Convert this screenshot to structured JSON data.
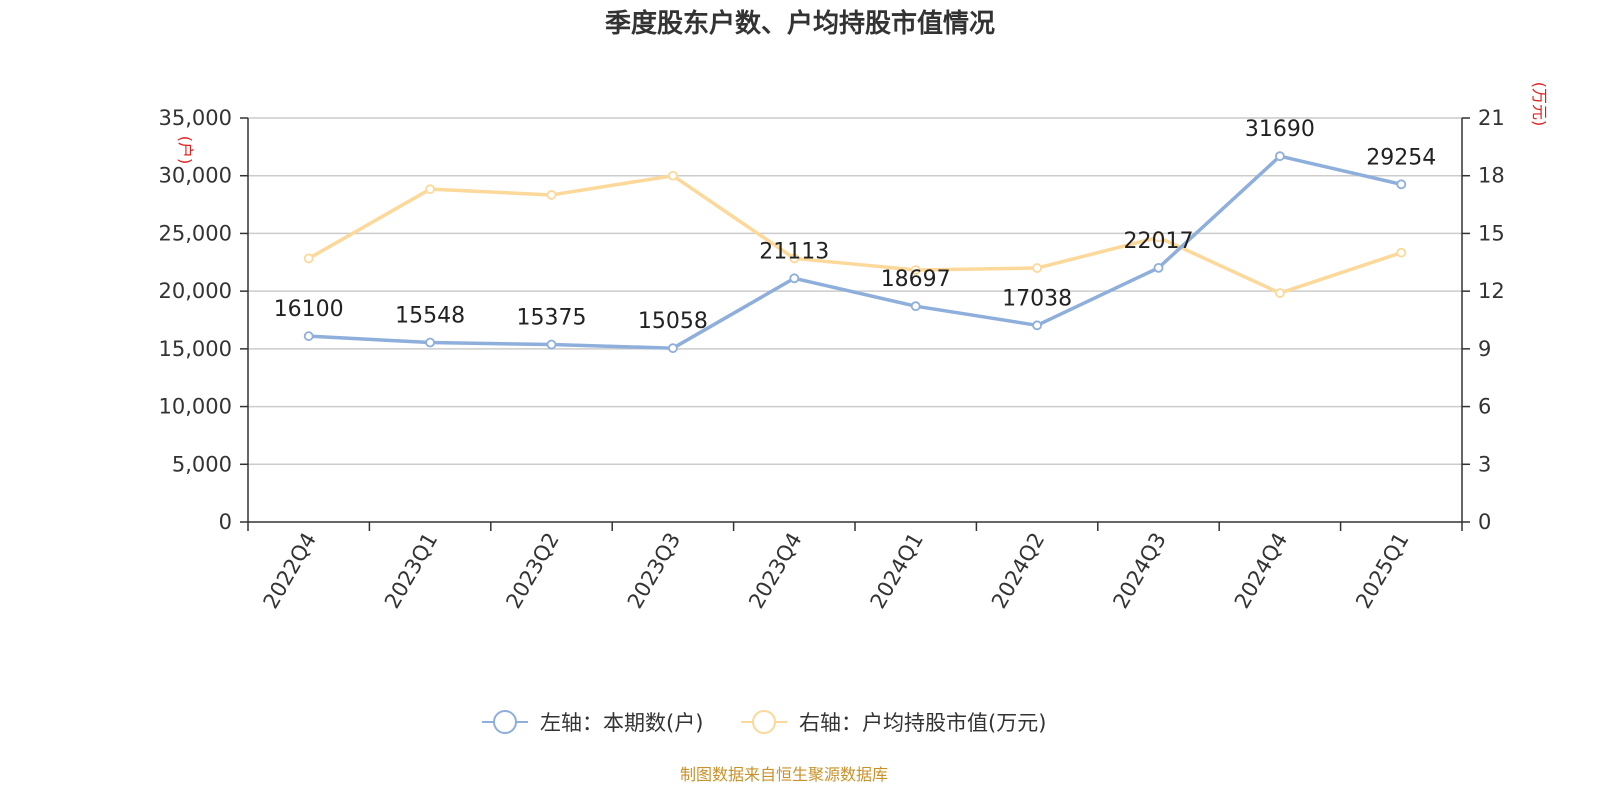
{
  "chart_data": {
    "type": "line",
    "title": "季度股东户数、户均持股市值情况",
    "categories": [
      "2022Q4",
      "2023Q1",
      "2023Q2",
      "2023Q3",
      "2023Q4",
      "2024Q1",
      "2024Q2",
      "2024Q3",
      "2024Q4",
      "2025Q1"
    ],
    "left_axis": {
      "unit": "(户)",
      "ylim": [
        0,
        35000
      ],
      "ticks": [
        "0",
        "5,000",
        "10,000",
        "15,000",
        "20,000",
        "25,000",
        "30,000",
        "35,000"
      ]
    },
    "right_axis": {
      "unit": "(万元)",
      "ylim": [
        0,
        21
      ],
      "ticks": [
        "0",
        "3",
        "6",
        "9",
        "12",
        "15",
        "18",
        "21"
      ]
    },
    "series": [
      {
        "name": "左轴：本期数(户)",
        "axis": "left",
        "color": "#8eaedb",
        "values": [
          16100,
          15548,
          15375,
          15058,
          21113,
          18697,
          17038,
          22017,
          31690,
          29254
        ],
        "labels": [
          "16100",
          "15548",
          "15375",
          "15058",
          "21113",
          "18697",
          "17038",
          "22017",
          "31690",
          "29254"
        ]
      },
      {
        "name": "右轴：户均持股市值(万元)",
        "axis": "right",
        "color": "#fcd99a",
        "values": [
          13.7,
          17.3,
          17.0,
          18.0,
          13.7,
          13.1,
          13.2,
          14.8,
          11.9,
          14.0
        ]
      }
    ],
    "grid": true,
    "legend_position": "bottom"
  },
  "source_note": "制图数据来自恒生聚源数据库"
}
